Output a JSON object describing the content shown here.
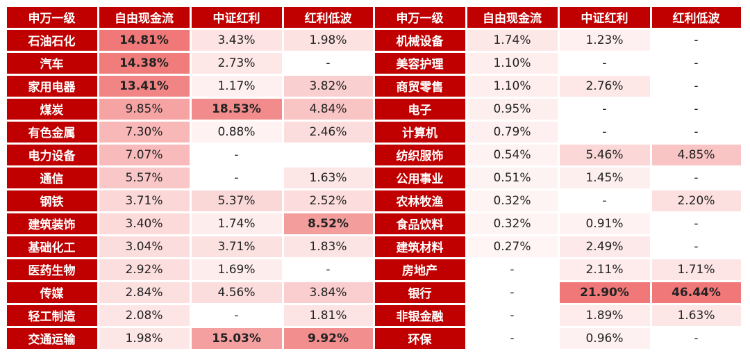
{
  "headers": [
    "申万一级",
    "自由现金流",
    "中证红利",
    "红利低波"
  ],
  "left_rows": [
    {
      "name": "石油石化",
      "v": [
        "14.81%",
        "3.43%",
        "1.98%"
      ]
    },
    {
      "name": "汽车",
      "v": [
        "14.38%",
        "2.73%",
        "-"
      ]
    },
    {
      "name": "家用电器",
      "v": [
        "13.41%",
        "1.17%",
        "3.82%"
      ]
    },
    {
      "name": "煤炭",
      "v": [
        "9.85%",
        "18.53%",
        "4.84%"
      ]
    },
    {
      "name": "有色金属",
      "v": [
        "7.30%",
        "0.88%",
        "2.46%"
      ]
    },
    {
      "name": "电力设备",
      "v": [
        "7.07%",
        "-",
        ""
      ]
    },
    {
      "name": "通信",
      "v": [
        "5.57%",
        "-",
        "1.63%"
      ]
    },
    {
      "name": "钢铁",
      "v": [
        "3.71%",
        "5.37%",
        "2.52%"
      ]
    },
    {
      "name": "建筑装饰",
      "v": [
        "3.40%",
        "1.74%",
        "8.52%"
      ]
    },
    {
      "name": "基础化工",
      "v": [
        "3.04%",
        "3.71%",
        "1.83%"
      ]
    },
    {
      "name": "医药生物",
      "v": [
        "2.92%",
        "1.69%",
        "-"
      ]
    },
    {
      "name": "传媒",
      "v": [
        "2.84%",
        "4.56%",
        "3.84%"
      ]
    },
    {
      "name": "轻工制造",
      "v": [
        "2.08%",
        "-",
        "1.81%"
      ]
    },
    {
      "name": "交通运输",
      "v": [
        "1.98%",
        "15.03%",
        "9.92%"
      ]
    }
  ],
  "right_rows": [
    {
      "name": "机械设备",
      "v": [
        "1.74%",
        "1.23%",
        "-"
      ]
    },
    {
      "name": "美容护理",
      "v": [
        "1.10%",
        "-",
        "-"
      ]
    },
    {
      "name": "商贸零售",
      "v": [
        "1.10%",
        "2.76%",
        "-"
      ]
    },
    {
      "name": "电子",
      "v": [
        "0.95%",
        "-",
        "-"
      ]
    },
    {
      "name": "计算机",
      "v": [
        "0.79%",
        "-",
        "-"
      ]
    },
    {
      "name": "纺织服饰",
      "v": [
        "0.54%",
        "5.46%",
        "4.85%"
      ]
    },
    {
      "name": "公用事业",
      "v": [
        "0.51%",
        "1.45%",
        "-"
      ]
    },
    {
      "name": "农林牧渔",
      "v": [
        "0.32%",
        "-",
        "2.20%"
      ]
    },
    {
      "name": "食品饮料",
      "v": [
        "0.32%",
        "0.91%",
        "-"
      ]
    },
    {
      "name": "建筑材料",
      "v": [
        "0.27%",
        "2.49%",
        "-"
      ]
    },
    {
      "name": "房地产",
      "v": [
        "-",
        "2.11%",
        "1.71%"
      ]
    },
    {
      "name": "银行",
      "v": [
        "-",
        "21.90%",
        "46.44%"
      ]
    },
    {
      "name": "非银金融",
      "v": [
        "-",
        "1.89%",
        "1.63%"
      ]
    },
    {
      "name": "环保",
      "v": [
        "-",
        "0.96%",
        "-"
      ]
    }
  ],
  "colors": {
    "header_bg": "#c00000",
    "header_text": "#ffffff",
    "high": "#f08080",
    "low": "#fff5f5"
  }
}
